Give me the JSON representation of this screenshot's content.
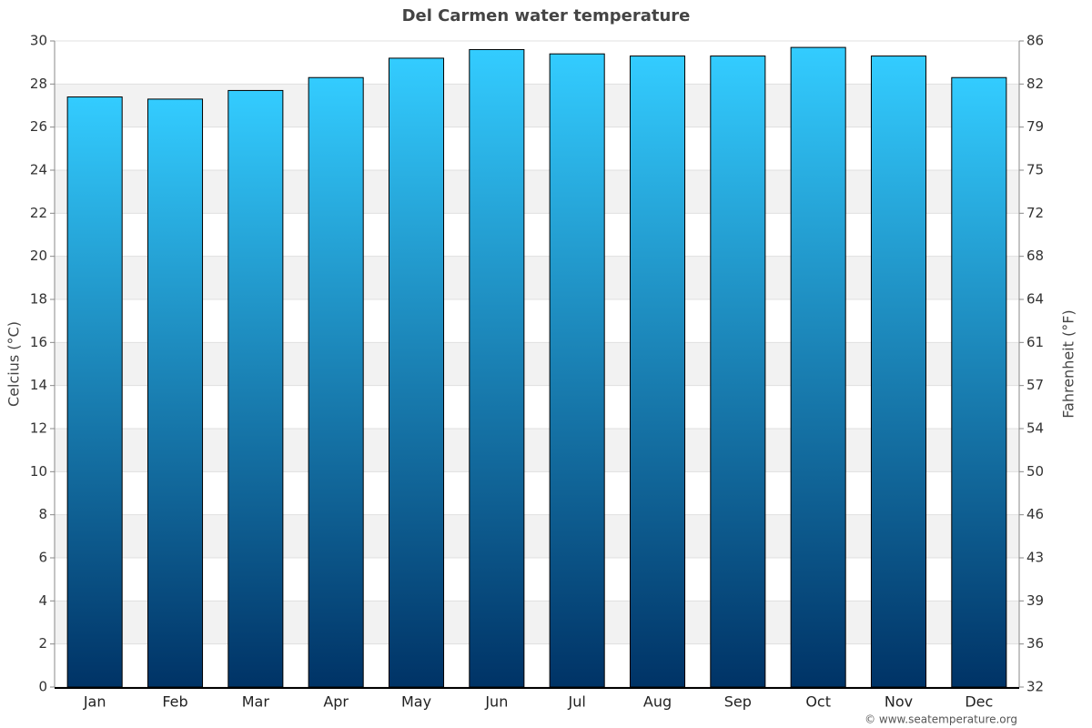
{
  "chart_data": {
    "type": "bar",
    "title": "Del Carmen water temperature",
    "y_label": "Celcius (°C)",
    "y2_label": "Fahrenheit (°F)",
    "categories": [
      "Jan",
      "Feb",
      "Mar",
      "Apr",
      "May",
      "Jun",
      "Jul",
      "Aug",
      "Sep",
      "Oct",
      "Nov",
      "Dec"
    ],
    "values": [
      27.4,
      27.3,
      27.7,
      28.3,
      29.2,
      29.6,
      29.4,
      29.3,
      29.3,
      29.7,
      29.3,
      28.3
    ],
    "color": [
      "#33ccff",
      "#003366"
    ],
    "ylim": [
      0,
      30
    ],
    "yticks": [
      0,
      2,
      4,
      6,
      8,
      10,
      12,
      14,
      16,
      18,
      20,
      22,
      24,
      26,
      28,
      30
    ],
    "y2lim": [
      32,
      86
    ],
    "y2ticks": [
      32,
      {
        "value": 35.6,
        "label": "36"
      },
      {
        "value": 39.2,
        "label": "39"
      },
      {
        "value": 42.8,
        "label": "43"
      },
      {
        "value": 46.4,
        "label": "46"
      },
      50,
      {
        "value": 53.6,
        "label": "54"
      },
      {
        "value": 57.2,
        "label": "57"
      },
      {
        "value": 60.8,
        "label": "61"
      },
      {
        "value": 64.4,
        "label": "64"
      },
      68,
      {
        "value": 71.6,
        "label": "72"
      },
      {
        "value": 75.2,
        "label": "75"
      },
      {
        "value": 78.8,
        "label": "79"
      },
      {
        "value": 82.4,
        "label": "82"
      },
      86
    ],
    "grid": true,
    "credit": "© www.seatemperature.org"
  }
}
